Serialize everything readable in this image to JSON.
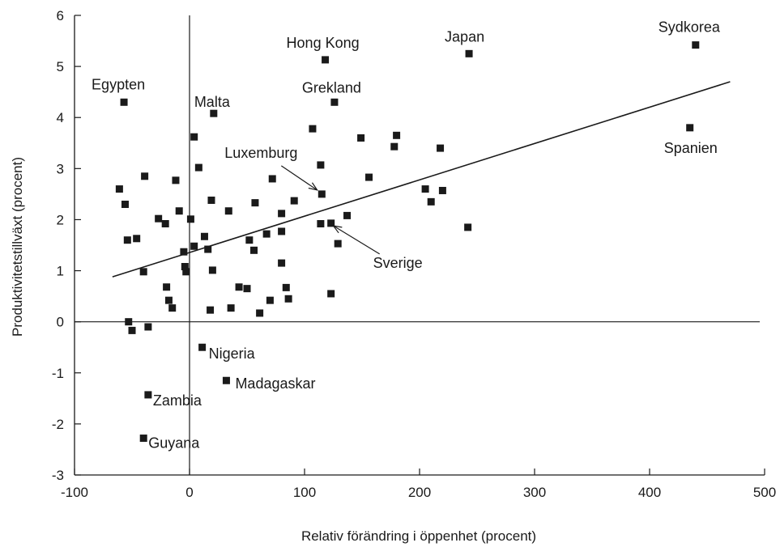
{
  "chart_data": {
    "type": "scatter",
    "xlabel": "Relativ förändring i öppenhet (procent)",
    "ylabel": "Produktivitetstillväxt (procent)",
    "xlim": [
      -100,
      500
    ],
    "ylim": [
      -3,
      6
    ],
    "x_ticks": [
      -100,
      0,
      100,
      200,
      300,
      400,
      500
    ],
    "y_ticks": [
      -3,
      -2,
      -1,
      0,
      1,
      2,
      3,
      4,
      5,
      6
    ],
    "grid": false,
    "zero_lines": true,
    "colors": {
      "marker": "#1a1a1a",
      "line": "#1a1a1a",
      "text": "#1a1a1a"
    },
    "trendline": {
      "from": [
        -67,
        0.88
      ],
      "to": [
        470,
        4.7
      ]
    },
    "points": [
      {
        "x": -57,
        "y": 4.3,
        "label": "Egypten"
      },
      {
        "x": 118,
        "y": 5.13,
        "label": "Hong Kong"
      },
      {
        "x": 243,
        "y": 5.25,
        "label": "Japan"
      },
      {
        "x": 440,
        "y": 5.42,
        "label": "Sydkorea"
      },
      {
        "x": 126,
        "y": 4.3,
        "label": "Grekland"
      },
      {
        "x": 21,
        "y": 4.08,
        "label": "Malta"
      },
      {
        "x": 435,
        "y": 3.8,
        "label": "Spanien"
      },
      {
        "x": 115,
        "y": 2.5,
        "label": "Luxemburg"
      },
      {
        "x": 123,
        "y": 1.93,
        "label": "Sverige"
      },
      {
        "x": 11,
        "y": -0.5,
        "label": "Nigeria"
      },
      {
        "x": 32,
        "y": -1.15,
        "label": "Madagaskar"
      },
      {
        "x": -36,
        "y": -1.43,
        "label": "Zambia"
      },
      {
        "x": -40,
        "y": -2.28,
        "label": "Guyana"
      },
      {
        "x": 4,
        "y": 3.62
      },
      {
        "x": 8,
        "y": 3.02
      },
      {
        "x": 107,
        "y": 3.78
      },
      {
        "x": 149,
        "y": 3.6
      },
      {
        "x": 180,
        "y": 3.65
      },
      {
        "x": 178,
        "y": 3.43
      },
      {
        "x": 218,
        "y": 3.4
      },
      {
        "x": 114,
        "y": 3.07
      },
      {
        "x": 72,
        "y": 2.8
      },
      {
        "x": 156,
        "y": 2.83
      },
      {
        "x": -39,
        "y": 2.85
      },
      {
        "x": -61,
        "y": 2.6
      },
      {
        "x": -12,
        "y": 2.77
      },
      {
        "x": 205,
        "y": 2.6
      },
      {
        "x": 220,
        "y": 2.57
      },
      {
        "x": -56,
        "y": 2.3
      },
      {
        "x": 19,
        "y": 2.38
      },
      {
        "x": 57,
        "y": 2.33
      },
      {
        "x": 91,
        "y": 2.37
      },
      {
        "x": 210,
        "y": 2.35
      },
      {
        "x": -9,
        "y": 2.17
      },
      {
        "x": 34,
        "y": 2.17
      },
      {
        "x": 80,
        "y": 2.12
      },
      {
        "x": 137,
        "y": 2.08
      },
      {
        "x": -27,
        "y": 2.02
      },
      {
        "x": 1,
        "y": 2.01
      },
      {
        "x": -21,
        "y": 1.92
      },
      {
        "x": 114,
        "y": 1.92
      },
      {
        "x": 242,
        "y": 1.85
      },
      {
        "x": 80,
        "y": 1.77
      },
      {
        "x": 67,
        "y": 1.72
      },
      {
        "x": 13,
        "y": 1.67
      },
      {
        "x": -46,
        "y": 1.63
      },
      {
        "x": -54,
        "y": 1.6
      },
      {
        "x": 52,
        "y": 1.6
      },
      {
        "x": 129,
        "y": 1.53
      },
      {
        "x": 4,
        "y": 1.48
      },
      {
        "x": 16,
        "y": 1.42
      },
      {
        "x": 56,
        "y": 1.4
      },
      {
        "x": -5,
        "y": 1.37
      },
      {
        "x": 80,
        "y": 1.15
      },
      {
        "x": -4,
        "y": 1.08
      },
      {
        "x": -40,
        "y": 0.98
      },
      {
        "x": -3,
        "y": 0.98
      },
      {
        "x": 20,
        "y": 1.01
      },
      {
        "x": -20,
        "y": 0.68
      },
      {
        "x": 43,
        "y": 0.68
      },
      {
        "x": 50,
        "y": 0.65
      },
      {
        "x": 84,
        "y": 0.67
      },
      {
        "x": 123,
        "y": 0.55
      },
      {
        "x": 86,
        "y": 0.45
      },
      {
        "x": 70,
        "y": 0.42
      },
      {
        "x": -18,
        "y": 0.42
      },
      {
        "x": -15,
        "y": 0.27
      },
      {
        "x": 36,
        "y": 0.27
      },
      {
        "x": 18,
        "y": 0.23
      },
      {
        "x": 61,
        "y": 0.17
      },
      {
        "x": -53,
        "y": 0.0
      },
      {
        "x": -50,
        "y": -0.17
      },
      {
        "x": -36,
        "y": -0.1
      }
    ]
  }
}
